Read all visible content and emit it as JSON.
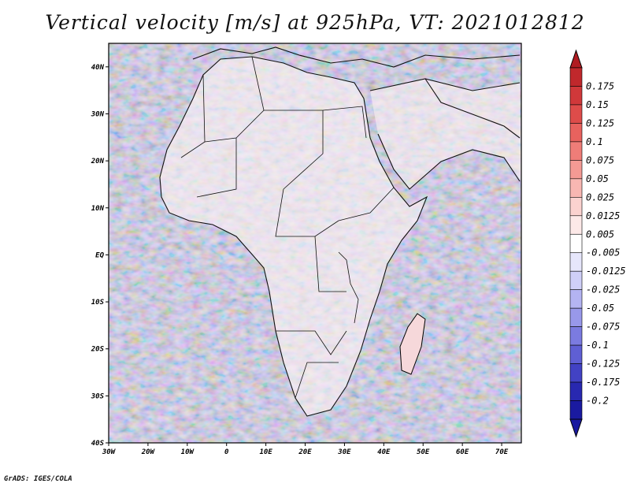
{
  "title": "Vertical velocity [m/s] at 925hPa, VT: 2021012812",
  "credit": "GrADS: IGES/COLA",
  "map": {
    "lon_range": [
      -30,
      75
    ],
    "lat_range": [
      -40,
      45
    ],
    "lon_ticks": [
      {
        "value": -30,
        "label": "30W"
      },
      {
        "value": -20,
        "label": "20W"
      },
      {
        "value": -10,
        "label": "10W"
      },
      {
        "value": 0,
        "label": "0"
      },
      {
        "value": 10,
        "label": "10E"
      },
      {
        "value": 20,
        "label": "20E"
      },
      {
        "value": 30,
        "label": "30E"
      },
      {
        "value": 40,
        "label": "40E"
      },
      {
        "value": 50,
        "label": "50E"
      },
      {
        "value": 60,
        "label": "60E"
      },
      {
        "value": 70,
        "label": "70E"
      }
    ],
    "lat_ticks": [
      {
        "value": 40,
        "label": "40N"
      },
      {
        "value": 30,
        "label": "30N"
      },
      {
        "value": 20,
        "label": "20N"
      },
      {
        "value": 10,
        "label": "10N"
      },
      {
        "value": 0,
        "label": "EQ"
      },
      {
        "value": -10,
        "label": "10S"
      },
      {
        "value": -20,
        "label": "20S"
      },
      {
        "value": -30,
        "label": "30S"
      },
      {
        "value": -40,
        "label": "40S"
      }
    ]
  },
  "colorbar": {
    "entries": [
      {
        "label": "0.175",
        "color": "#c0282c"
      },
      {
        "label": "0.15",
        "color": "#d0383a"
      },
      {
        "label": "0.125",
        "color": "#de4c4a"
      },
      {
        "label": "0.1",
        "color": "#e8625e"
      },
      {
        "label": "0.075",
        "color": "#ef7d78"
      },
      {
        "label": "0.05",
        "color": "#f49a94"
      },
      {
        "label": "0.025",
        "color": "#f8b7b2"
      },
      {
        "label": "0.0125",
        "color": "#fbd2cf"
      },
      {
        "label": "0.005",
        "color": "#fde9e8"
      },
      {
        "label": "-0.005",
        "color": "#ffffff"
      },
      {
        "label": "-0.0125",
        "color": "#e6e6fb"
      },
      {
        "label": "-0.025",
        "color": "#cfcff8"
      },
      {
        "label": "-0.05",
        "color": "#b4b4f2"
      },
      {
        "label": "-0.075",
        "color": "#9898ea"
      },
      {
        "label": "-0.1",
        "color": "#7b7be0"
      },
      {
        "label": "-0.125",
        "color": "#5f5fd4"
      },
      {
        "label": "-0.175",
        "color": "#4242c4"
      },
      {
        "label": "-0.2",
        "color": "#2828b0"
      },
      {
        "label": "",
        "color": "#1a1aa0"
      }
    ],
    "top_color": "#b01c22",
    "bottom_color": "#1a1aa0"
  }
}
